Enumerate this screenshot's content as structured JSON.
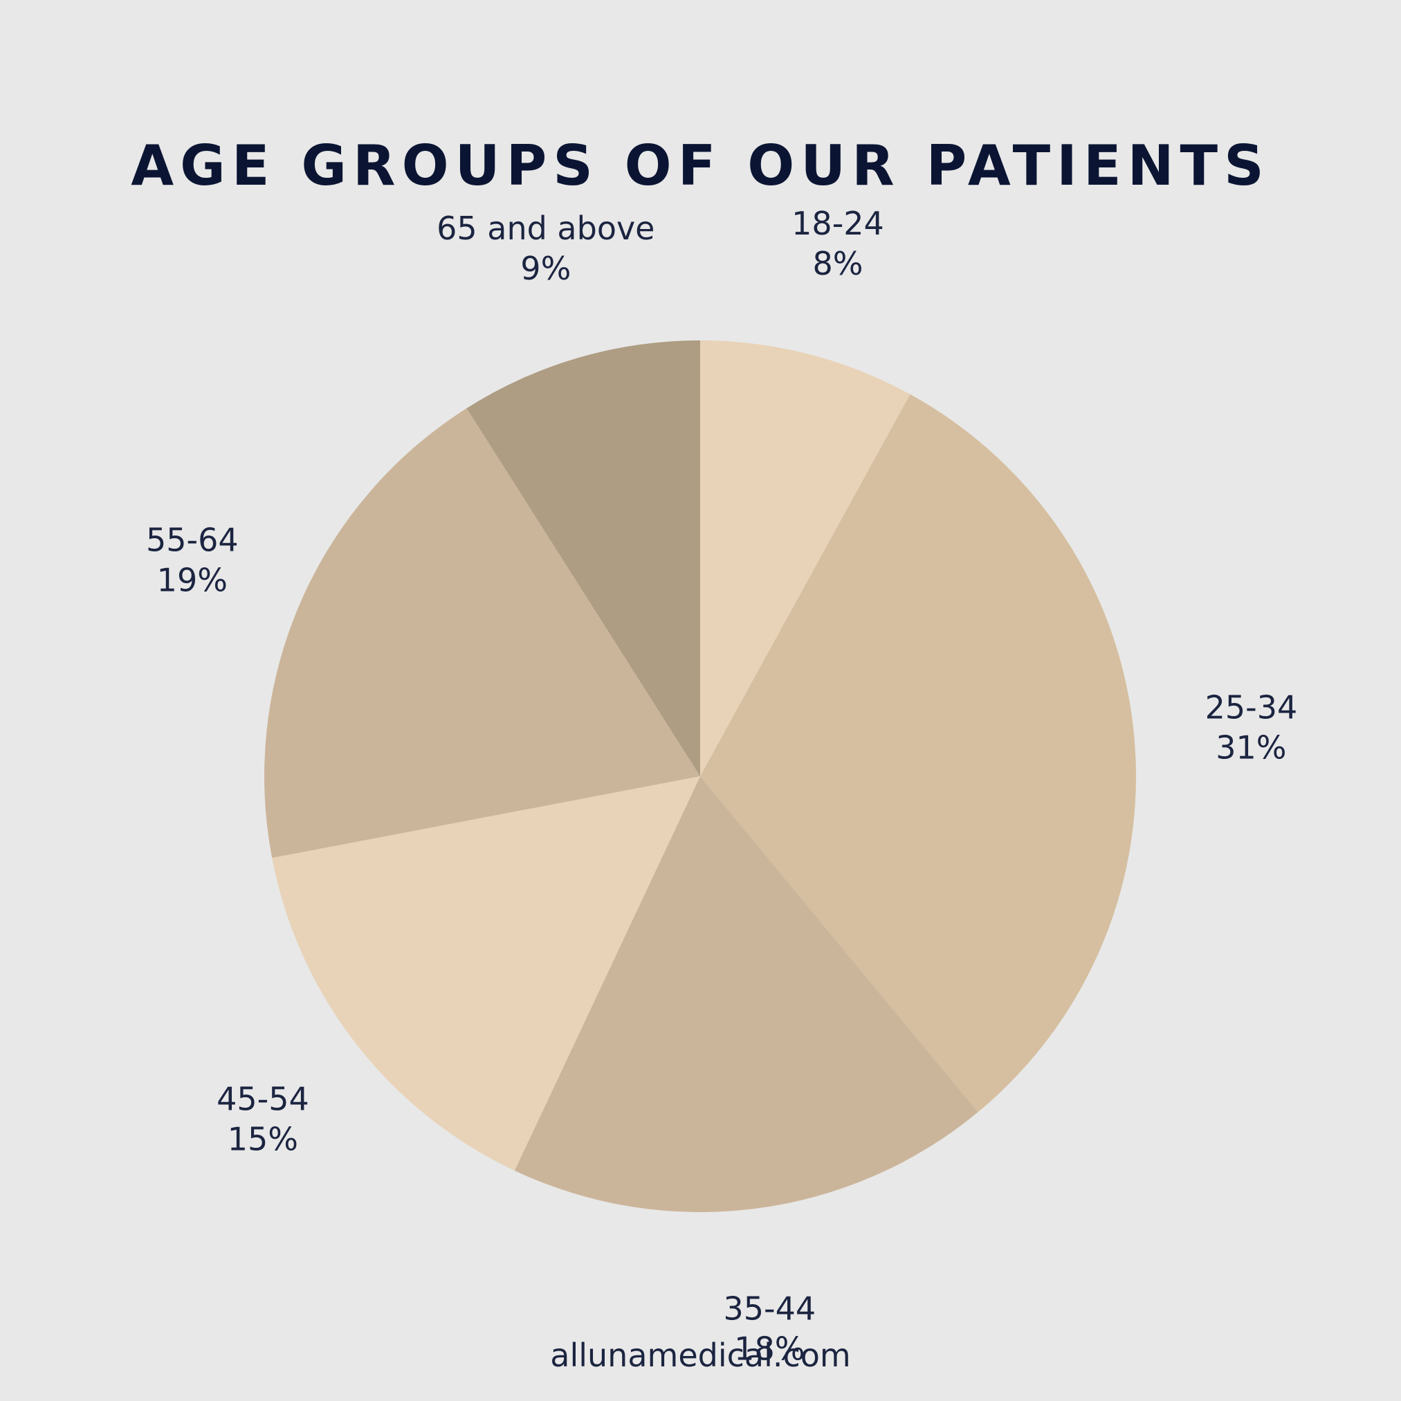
{
  "chart_data": {
    "type": "pie",
    "title": "AGE GROUPS OF OUR PATIENTS",
    "start": "12 o'clock",
    "direction": "clockwise",
    "slices": [
      {
        "label": "18-24",
        "value_label": "8%",
        "value": 8,
        "color": "#e8d3b8"
      },
      {
        "label": "25-34",
        "value_label": "31%",
        "value": 31,
        "color": "#d5bfa0"
      },
      {
        "label": "35-44",
        "value_label": "18%",
        "value": 18,
        "color": "#cbb59a"
      },
      {
        "label": "45-54",
        "value_label": "15%",
        "value": 15,
        "color": "#e8d3b8"
      },
      {
        "label": "55-64",
        "value_label": "19%",
        "value": 19,
        "color": "#cbb59a"
      },
      {
        "label": "65 and above",
        "value_label": "9%",
        "value": 9,
        "color": "#ae9d82"
      }
    ]
  },
  "footer": {
    "website": "allunamedical.com"
  }
}
